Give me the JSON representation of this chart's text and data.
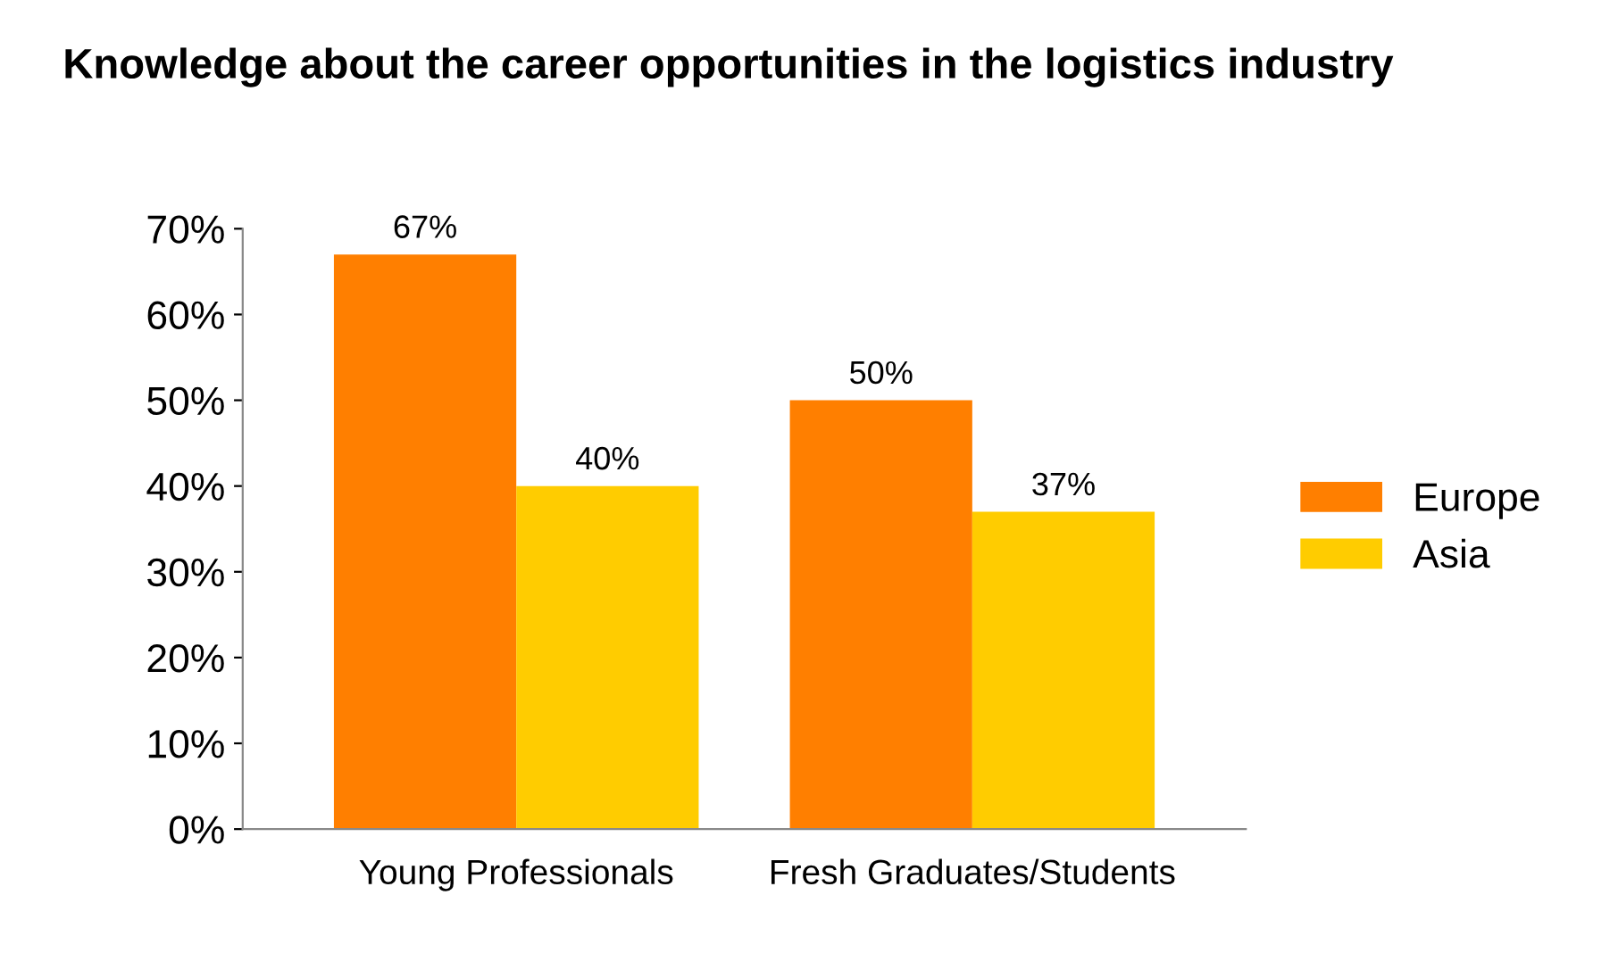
{
  "chart_data": {
    "type": "bar",
    "title": "Knowledge about the career opportunities in the logistics industry",
    "categories": [
      "Young Professionals",
      "Fresh Graduates/Students"
    ],
    "series": [
      {
        "name": "Europe",
        "color": "#ff7f00",
        "values": [
          67,
          50
        ],
        "value_labels": [
          "67%",
          "50%"
        ]
      },
      {
        "name": "Asia",
        "color": "#ffcc00",
        "values": [
          40,
          37
        ],
        "value_labels": [
          "40%",
          "37%"
        ]
      }
    ],
    "ylim": [
      0,
      70
    ],
    "yticks": [
      {
        "value": 0,
        "label": "0%"
      },
      {
        "value": 10,
        "label": "10%"
      },
      {
        "value": 20,
        "label": "20%"
      },
      {
        "value": 30,
        "label": "30%"
      },
      {
        "value": 40,
        "label": "40%"
      },
      {
        "value": 50,
        "label": "50%"
      },
      {
        "value": 60,
        "label": "60%"
      },
      {
        "value": 70,
        "label": "70%"
      }
    ],
    "grid": false,
    "legend": "right"
  }
}
